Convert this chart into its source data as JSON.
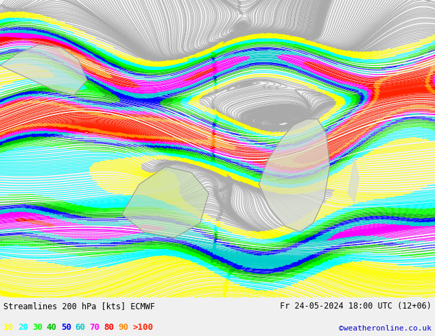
{
  "title_left": "Streamlines 200 hPa [kts] ECMWF",
  "title_right": "Fr 24-05-2024 18:00 UTC (12+06)",
  "credit": "©weatheronline.co.uk",
  "legend_labels": [
    "10",
    "20",
    "30",
    "40",
    "50",
    "60",
    "70",
    "80",
    "90",
    ">100"
  ],
  "legend_colors": [
    "#ffff00",
    "#00ffff",
    "#00ff00",
    "#00bb00",
    "#0000ff",
    "#00cccc",
    "#ff00ff",
    "#ff0000",
    "#ff8800",
    "#ff2200"
  ],
  "background_color": "#f0f0f0",
  "title_color": "#000000",
  "credit_color": "#0000cc",
  "fig_width": 6.34,
  "fig_height": 4.9,
  "dpi": 100,
  "speed_colors": [
    [
      0,
      "#aaaaaa"
    ],
    [
      10,
      "#ffff00"
    ],
    [
      20,
      "#00ffff"
    ],
    [
      30,
      "#00ff00"
    ],
    [
      40,
      "#00bb00"
    ],
    [
      50,
      "#0000ff"
    ],
    [
      60,
      "#00cccc"
    ],
    [
      70,
      "#ff00ff"
    ],
    [
      80,
      "#ff0000"
    ],
    [
      90,
      "#ff8800"
    ],
    [
      100,
      "#ff2200"
    ]
  ],
  "max_speed_kts": 130
}
